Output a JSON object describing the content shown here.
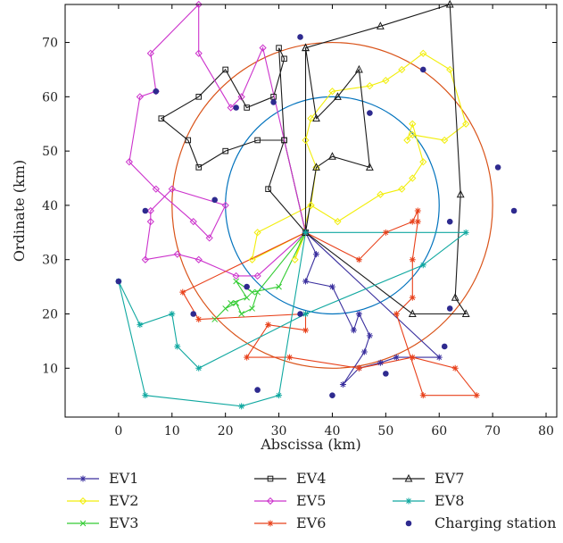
{
  "chart_data": {
    "type": "scatter",
    "title": "",
    "xlabel": "Abscissa (km)",
    "ylabel": "Ordinate (km)",
    "xlim": [
      -10,
      82
    ],
    "ylim": [
      1,
      77
    ],
    "xticks": [
      0,
      10,
      20,
      30,
      40,
      50,
      60,
      70,
      80
    ],
    "yticks": [
      10,
      20,
      30,
      40,
      50,
      60,
      70
    ],
    "grid": false,
    "legend_position": "bottom",
    "depot": [
      35,
      35
    ],
    "circles": [
      {
        "center": [
          40,
          40
        ],
        "radius": 20,
        "color": "#0072BD"
      },
      {
        "center": [
          40,
          40
        ],
        "radius": 30,
        "color": "#D95319"
      }
    ],
    "series": [
      {
        "name": "EV1",
        "color": "#3A2F9E",
        "marker": "star",
        "points": [
          [
            35,
            35
          ],
          [
            37,
            31
          ],
          [
            35,
            26
          ],
          [
            40,
            25
          ],
          [
            44,
            17
          ],
          [
            45,
            20
          ],
          [
            47,
            16
          ],
          [
            46,
            13
          ],
          [
            42,
            7
          ],
          [
            45,
            10
          ],
          [
            49,
            11
          ],
          [
            52,
            12
          ],
          [
            60,
            12
          ],
          [
            35,
            35
          ]
        ]
      },
      {
        "name": "EV2",
        "color": "#F2EE0A",
        "marker": "diamond",
        "points": [
          [
            35,
            35
          ],
          [
            33,
            30
          ],
          [
            36,
            40
          ],
          [
            37,
            47
          ],
          [
            35,
            52
          ],
          [
            36,
            56
          ],
          [
            40,
            61
          ],
          [
            47,
            62
          ],
          [
            50,
            63
          ],
          [
            53,
            65
          ],
          [
            57,
            68
          ],
          [
            62,
            65
          ],
          [
            65,
            55
          ],
          [
            61,
            52
          ],
          [
            55,
            53
          ],
          [
            54,
            52
          ],
          [
            55,
            55
          ],
          [
            57,
            48
          ],
          [
            55,
            45
          ],
          [
            53,
            43
          ],
          [
            49,
            42
          ],
          [
            41,
            37
          ],
          [
            36,
            40
          ],
          [
            26,
            35
          ],
          [
            25,
            30
          ],
          [
            35,
            35
          ]
        ]
      },
      {
        "name": "EV3",
        "color": "#33CC33",
        "marker": "x",
        "points": [
          [
            35,
            35
          ],
          [
            30,
            25
          ],
          [
            25,
            24
          ],
          [
            22,
            26
          ],
          [
            24,
            23
          ],
          [
            21,
            22
          ],
          [
            18,
            19
          ],
          [
            20,
            21
          ],
          [
            22,
            22
          ],
          [
            23,
            20
          ],
          [
            25,
            21
          ],
          [
            26,
            24
          ],
          [
            35,
            35
          ]
        ]
      },
      {
        "name": "EV4",
        "color": "#1A1A1A",
        "marker": "square",
        "points": [
          [
            35,
            35
          ],
          [
            31,
            52
          ],
          [
            26,
            52
          ],
          [
            20,
            50
          ],
          [
            15,
            47
          ],
          [
            13,
            52
          ],
          [
            8,
            56
          ],
          [
            15,
            60
          ],
          [
            20,
            65
          ],
          [
            24,
            58
          ],
          [
            29,
            60
          ],
          [
            31,
            67
          ],
          [
            30,
            69
          ],
          [
            31,
            52
          ],
          [
            28,
            43
          ],
          [
            35,
            35
          ]
        ]
      },
      {
        "name": "EV5",
        "color": "#CC33CC",
        "marker": "diamond",
        "points": [
          [
            35,
            35
          ],
          [
            27,
            69
          ],
          [
            23,
            60
          ],
          [
            21,
            58
          ],
          [
            15,
            68
          ],
          [
            15,
            77
          ],
          [
            6,
            68
          ],
          [
            7,
            61
          ],
          [
            4,
            60
          ],
          [
            2,
            48
          ],
          [
            7,
            43
          ],
          [
            14,
            37
          ],
          [
            17,
            34
          ],
          [
            20,
            40
          ],
          [
            10,
            43
          ],
          [
            6,
            39
          ],
          [
            6,
            37
          ],
          [
            5,
            30
          ],
          [
            11,
            31
          ],
          [
            15,
            30
          ],
          [
            22,
            27
          ],
          [
            26,
            27
          ],
          [
            35,
            35
          ]
        ]
      },
      {
        "name": "EV6",
        "color": "#E8401A",
        "marker": "star",
        "points": [
          [
            35,
            35
          ],
          [
            45,
            30
          ],
          [
            50,
            35
          ],
          [
            55,
            37
          ],
          [
            56,
            39
          ],
          [
            56,
            37
          ],
          [
            55,
            30
          ],
          [
            55,
            23
          ],
          [
            52,
            20
          ],
          [
            57,
            5
          ],
          [
            67,
            5
          ],
          [
            63,
            10
          ],
          [
            55,
            12
          ],
          [
            45,
            10
          ],
          [
            32,
            12
          ],
          [
            24,
            12
          ],
          [
            28,
            18
          ],
          [
            35,
            17
          ],
          [
            35,
            20
          ],
          [
            15,
            19
          ],
          [
            12,
            24
          ],
          [
            35,
            35
          ]
        ]
      },
      {
        "name": "EV7",
        "color": "#1A1A1A",
        "marker": "triangle",
        "points": [
          [
            35,
            35
          ],
          [
            35,
            69
          ],
          [
            49,
            73
          ],
          [
            62,
            77
          ],
          [
            64,
            42
          ],
          [
            63,
            23
          ],
          [
            65,
            20
          ],
          [
            55,
            20
          ],
          [
            35,
            35
          ],
          [
            37,
            47
          ],
          [
            40,
            49
          ],
          [
            47,
            47
          ],
          [
            45,
            65
          ],
          [
            41,
            60
          ],
          [
            37,
            56
          ],
          [
            35,
            69
          ]
        ]
      },
      {
        "name": "EV8",
        "color": "#10A8A0",
        "marker": "star",
        "points": [
          [
            35,
            35
          ],
          [
            65,
            35
          ],
          [
            57,
            29
          ],
          [
            35,
            20
          ],
          [
            15,
            10
          ],
          [
            11,
            14
          ],
          [
            10,
            20
          ],
          [
            4,
            18
          ],
          [
            0,
            26
          ],
          [
            5,
            5
          ],
          [
            23,
            3
          ],
          [
            30,
            5
          ],
          [
            35,
            35
          ]
        ]
      }
    ],
    "charging_stations": {
      "name": "Charging station",
      "color": "#2E2A8F",
      "points": [
        [
          0,
          26
        ],
        [
          5,
          39
        ],
        [
          7,
          61
        ],
        [
          14,
          20
        ],
        [
          18,
          41
        ],
        [
          22,
          58
        ],
        [
          24,
          25
        ],
        [
          26,
          6
        ],
        [
          29,
          59
        ],
        [
          34,
          20
        ],
        [
          34,
          71
        ],
        [
          40,
          5
        ],
        [
          47,
          57
        ],
        [
          50,
          9
        ],
        [
          57,
          65
        ],
        [
          61,
          14
        ],
        [
          62,
          21
        ],
        [
          62,
          37
        ],
        [
          71,
          47
        ],
        [
          74,
          39
        ]
      ]
    }
  }
}
